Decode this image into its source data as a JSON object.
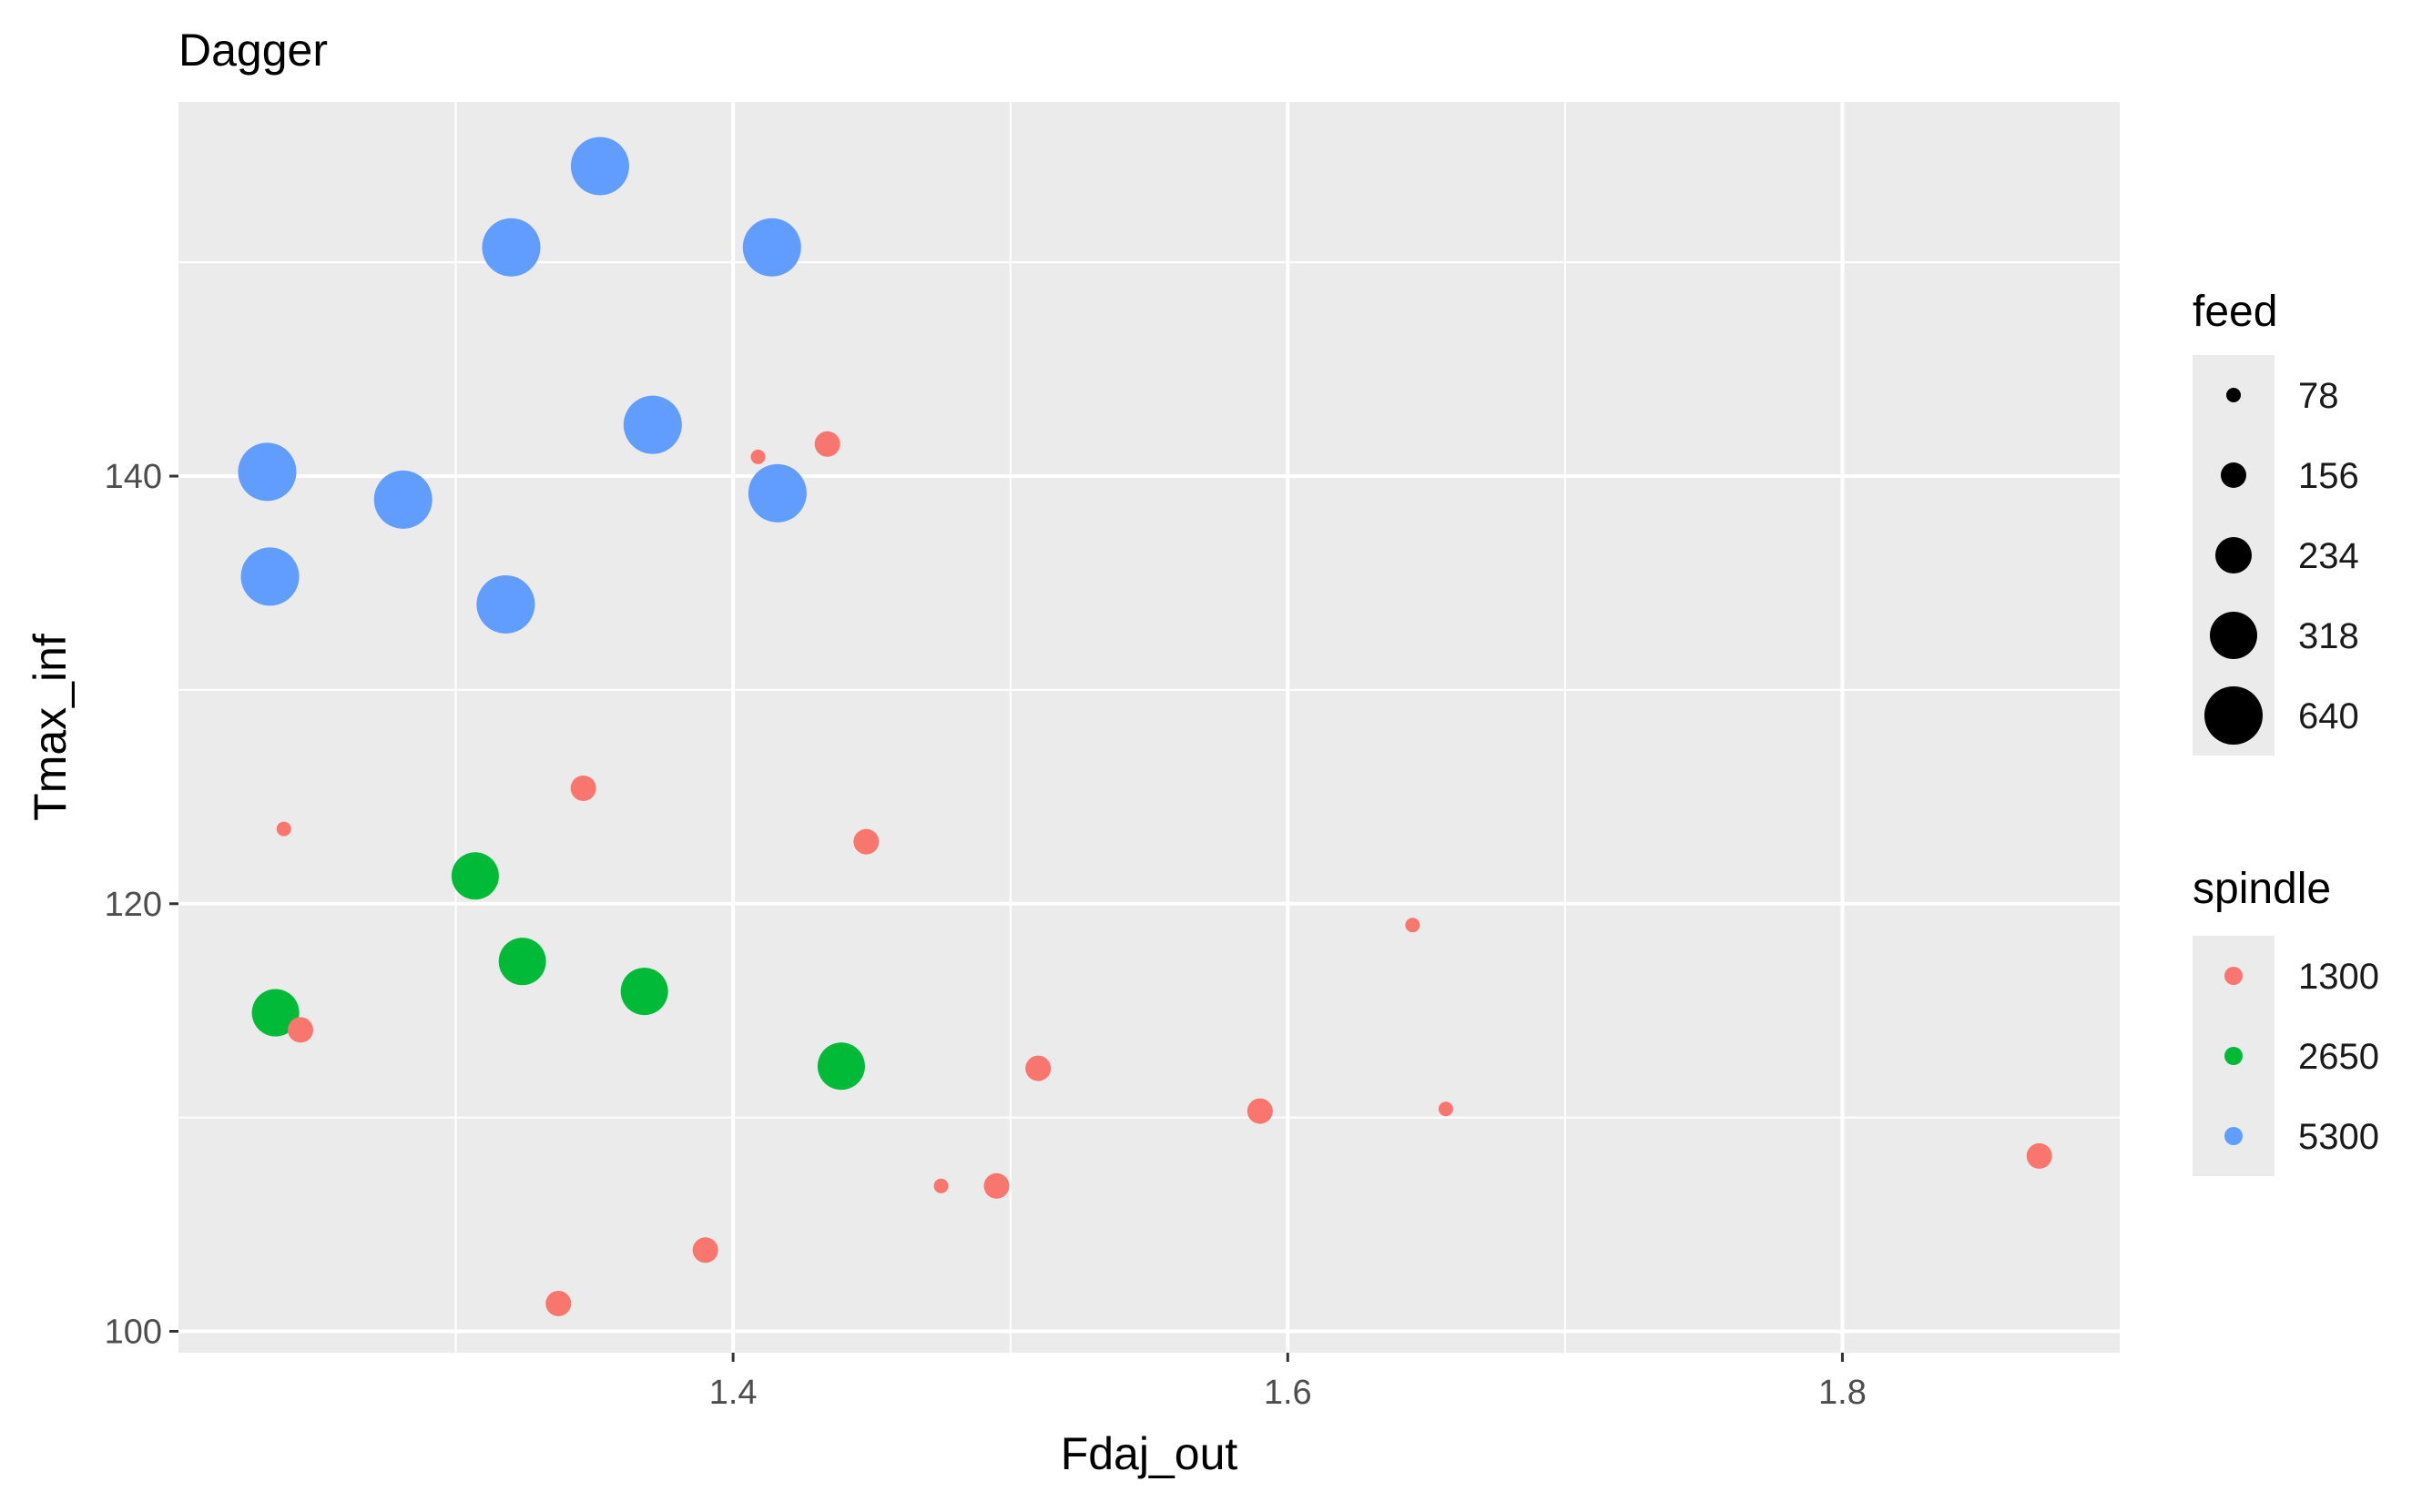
{
  "chart_data": {
    "type": "scatter",
    "title": "Dagger",
    "xlabel": "Fdaj_out",
    "ylabel": "Tmax_inf",
    "xlim": [
      1.2,
      1.9
    ],
    "ylim": [
      99,
      157.5
    ],
    "x_ticks": [
      1.4,
      1.6,
      1.8
    ],
    "y_ticks": [
      100,
      120,
      140
    ],
    "grid": true,
    "legend_position": "right",
    "size_legend": {
      "title": "feed",
      "levels": [
        "78",
        "156",
        "234",
        "318",
        "640"
      ]
    },
    "color_legend": {
      "title": "spindle",
      "levels": [
        "1300",
        "2650",
        "5300"
      ],
      "colors": [
        "#F8766D",
        "#00BA38",
        "#619CFF"
      ]
    },
    "points": [
      {
        "x": 1.352,
        "y": 154.5,
        "spindle": "5300",
        "feed": "640"
      },
      {
        "x": 1.32,
        "y": 150.7,
        "spindle": "5300",
        "feed": "640"
      },
      {
        "x": 1.414,
        "y": 150.7,
        "spindle": "5300",
        "feed": "640"
      },
      {
        "x": 1.371,
        "y": 142.4,
        "spindle": "5300",
        "feed": "640"
      },
      {
        "x": 1.232,
        "y": 140.2,
        "spindle": "5300",
        "feed": "640"
      },
      {
        "x": 1.281,
        "y": 138.9,
        "spindle": "5300",
        "feed": "640"
      },
      {
        "x": 1.416,
        "y": 139.2,
        "spindle": "5300",
        "feed": "640"
      },
      {
        "x": 1.233,
        "y": 135.3,
        "spindle": "5300",
        "feed": "640"
      },
      {
        "x": 1.318,
        "y": 134.0,
        "spindle": "5300",
        "feed": "640"
      },
      {
        "x": 1.307,
        "y": 121.3,
        "spindle": "2650",
        "feed": "318"
      },
      {
        "x": 1.324,
        "y": 117.3,
        "spindle": "2650",
        "feed": "318"
      },
      {
        "x": 1.368,
        "y": 115.9,
        "spindle": "2650",
        "feed": "318"
      },
      {
        "x": 1.235,
        "y": 114.9,
        "spindle": "2650",
        "feed": "318"
      },
      {
        "x": 1.439,
        "y": 112.4,
        "spindle": "2650",
        "feed": "318"
      },
      {
        "x": 1.434,
        "y": 141.5,
        "spindle": "1300",
        "feed": "156"
      },
      {
        "x": 1.409,
        "y": 140.9,
        "spindle": "1300",
        "feed": "78"
      },
      {
        "x": 1.346,
        "y": 125.4,
        "spindle": "1300",
        "feed": "156"
      },
      {
        "x": 1.238,
        "y": 123.5,
        "spindle": "1300",
        "feed": "78"
      },
      {
        "x": 1.448,
        "y": 122.9,
        "spindle": "1300",
        "feed": "156"
      },
      {
        "x": 1.645,
        "y": 119.0,
        "spindle": "1300",
        "feed": "78"
      },
      {
        "x": 1.244,
        "y": 114.1,
        "spindle": "1300",
        "feed": "156"
      },
      {
        "x": 1.51,
        "y": 112.3,
        "spindle": "1300",
        "feed": "156"
      },
      {
        "x": 1.59,
        "y": 110.3,
        "spindle": "1300",
        "feed": "156"
      },
      {
        "x": 1.657,
        "y": 110.4,
        "spindle": "1300",
        "feed": "78"
      },
      {
        "x": 1.871,
        "y": 108.2,
        "spindle": "1300",
        "feed": "156"
      },
      {
        "x": 1.475,
        "y": 106.8,
        "spindle": "1300",
        "feed": "78"
      },
      {
        "x": 1.495,
        "y": 106.8,
        "spindle": "1300",
        "feed": "156"
      },
      {
        "x": 1.39,
        "y": 103.8,
        "spindle": "1300",
        "feed": "156"
      },
      {
        "x": 1.337,
        "y": 101.3,
        "spindle": "1300",
        "feed": "156"
      }
    ]
  }
}
